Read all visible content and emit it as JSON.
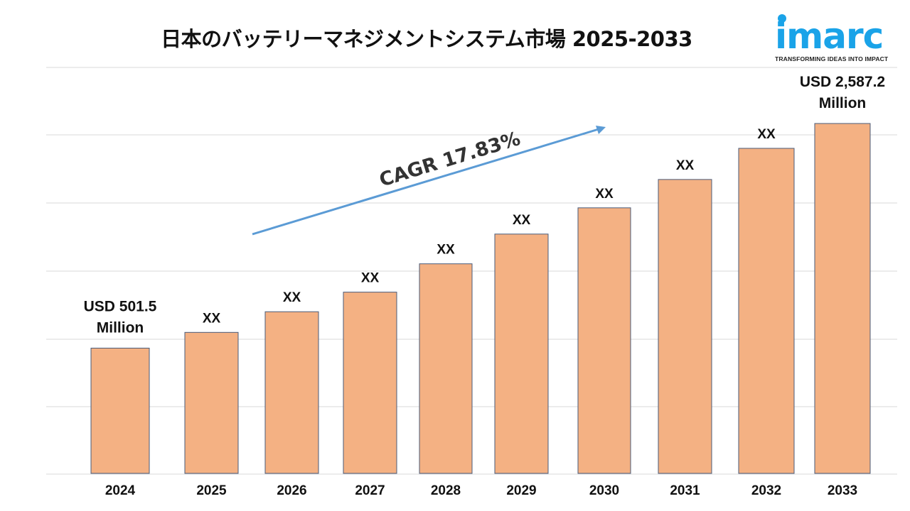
{
  "chart_data": {
    "type": "bar",
    "title": "日本のバッテリーマネジメントシステム市場 2025-2033",
    "categories": [
      "2024",
      "2025",
      "2026",
      "2027",
      "2028",
      "2029",
      "2030",
      "2031",
      "2032",
      "2033"
    ],
    "values": [
      501.5,
      null,
      null,
      null,
      null,
      null,
      null,
      null,
      null,
      2587.2
    ],
    "relative_level": [
      0.358,
      0.403,
      0.462,
      0.518,
      0.599,
      0.684,
      0.759,
      0.84,
      0.929,
      1.0
    ],
    "data_labels": [
      "USD 501.5|Million",
      "XX",
      "XX",
      "XX",
      "XX",
      "XX",
      "XX",
      "XX",
      "XX",
      "USD 2,587.2|Million"
    ],
    "unit": "USD Million",
    "xlabel": "",
    "ylabel": "",
    "grid": true,
    "annotation": {
      "text": "CAGR 17.83%",
      "type": "arrow"
    },
    "colors": {
      "bar": "#F4B183",
      "bar_border": "#4a5b7a",
      "arrow": "#5B9BD5",
      "grid": "#d9d9d9"
    }
  },
  "logo": {
    "word": "imarc",
    "tagline": "TRANSFORMING IDEAS INTO IMPACT"
  }
}
